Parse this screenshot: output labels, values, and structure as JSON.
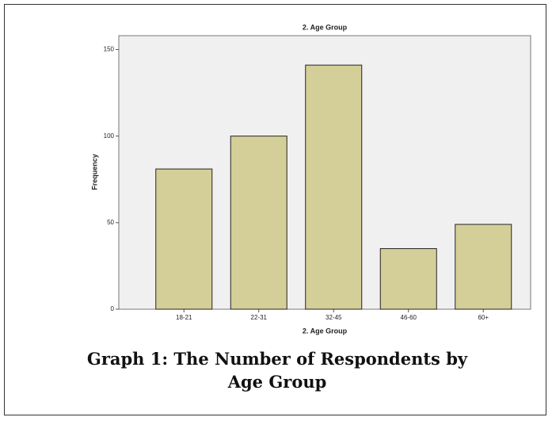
{
  "chart_data": {
    "type": "bar",
    "title": "2. Age Group",
    "categories": [
      "18-21",
      "22-31",
      "32-45",
      "46-60",
      "60+"
    ],
    "values": [
      81,
      100,
      141,
      35,
      49
    ],
    "color": "#d4cf98",
    "xlabel": "2. Age Group",
    "ylabel": "Frequency",
    "ylim": [
      0,
      158
    ],
    "yticks": [
      0,
      50,
      100,
      150
    ]
  },
  "caption": "Graph 1: The Number of Respondents by Age Group"
}
